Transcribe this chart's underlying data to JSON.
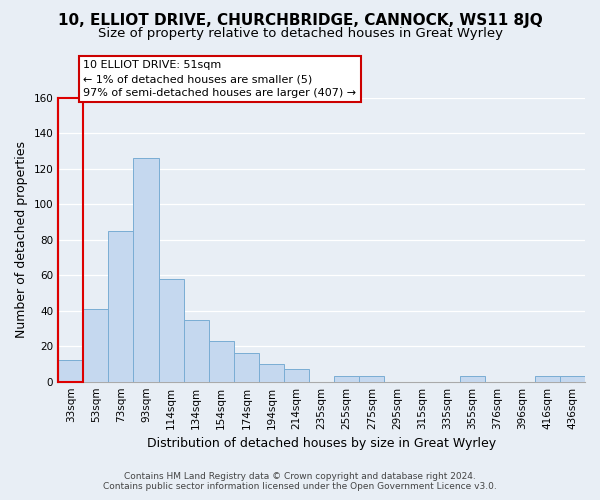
{
  "title": "10, ELLIOT DRIVE, CHURCHBRIDGE, CANNOCK, WS11 8JQ",
  "subtitle": "Size of property relative to detached houses in Great Wyrley",
  "xlabel": "Distribution of detached houses by size in Great Wyrley",
  "ylabel": "Number of detached properties",
  "bar_labels": [
    "33sqm",
    "53sqm",
    "73sqm",
    "93sqm",
    "114sqm",
    "134sqm",
    "154sqm",
    "174sqm",
    "194sqm",
    "214sqm",
    "235sqm",
    "255sqm",
    "275sqm",
    "295sqm",
    "315sqm",
    "335sqm",
    "355sqm",
    "376sqm",
    "396sqm",
    "416sqm",
    "436sqm"
  ],
  "bar_heights": [
    12,
    41,
    85,
    126,
    58,
    35,
    23,
    16,
    10,
    7,
    0,
    3,
    3,
    0,
    0,
    0,
    3,
    0,
    0,
    3,
    3
  ],
  "bar_color": "#c5d8ef",
  "bar_edge_color": "#7aadd4",
  "highlight_color": "#dd0000",
  "ylim": [
    0,
    160
  ],
  "yticks": [
    0,
    20,
    40,
    60,
    80,
    100,
    120,
    140,
    160
  ],
  "annotation_title": "10 ELLIOT DRIVE: 51sqm",
  "annotation_line1": "← 1% of detached houses are smaller (5)",
  "annotation_line2": "97% of semi-detached houses are larger (407) →",
  "annotation_box_color": "#ffffff",
  "annotation_box_edge": "#cc0000",
  "footer_line1": "Contains HM Land Registry data © Crown copyright and database right 2024.",
  "footer_line2": "Contains public sector information licensed under the Open Government Licence v3.0.",
  "bg_color": "#e8eef5",
  "plot_bg_color": "#e8eef5",
  "grid_color": "#ffffff",
  "title_fontsize": 11,
  "subtitle_fontsize": 9.5,
  "axis_label_fontsize": 9,
  "tick_fontsize": 7.5,
  "annotation_fontsize": 8,
  "footer_fontsize": 6.5
}
